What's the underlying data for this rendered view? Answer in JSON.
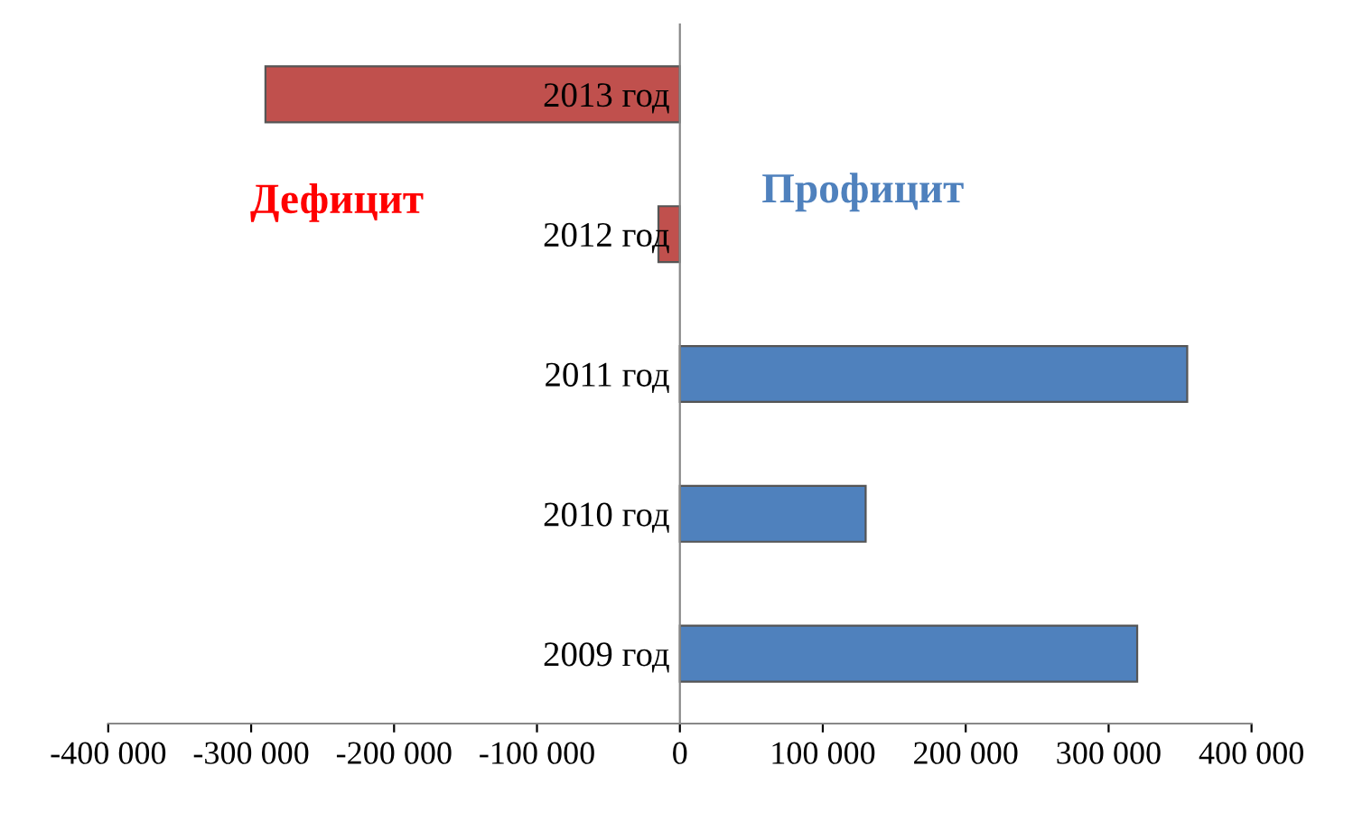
{
  "chart_data": {
    "type": "bar",
    "orientation": "horizontal",
    "categories": [
      "2013 год",
      "2012 год",
      "2011 год",
      "2010 год",
      "2009 год"
    ],
    "values": [
      -290000,
      -15000,
      355000,
      130000,
      320000
    ],
    "colors": [
      "#c0504d",
      "#c0504d",
      "#4f81bd",
      "#4f81bd",
      "#4f81bd"
    ],
    "xlim": [
      -400000,
      400000
    ],
    "xticks": [
      {
        "value": -400000,
        "label": "-400 000"
      },
      {
        "value": -300000,
        "label": "-300 000"
      },
      {
        "value": -200000,
        "label": "-200 000"
      },
      {
        "value": -100000,
        "label": "-100 000"
      },
      0,
      {
        "value": 100000,
        "label": "100 000"
      },
      {
        "value": 200000,
        "label": "200 000"
      },
      {
        "value": 300000,
        "label": "300 000"
      },
      {
        "value": 400000,
        "label": "400 000"
      }
    ],
    "annotations": [
      "Дефицит",
      "Профицит"
    ],
    "grid": false,
    "legend": false
  }
}
